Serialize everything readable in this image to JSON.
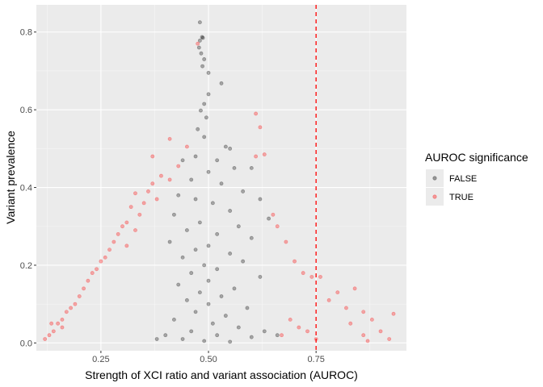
{
  "chart_data": {
    "type": "scatter",
    "title": "",
    "xlabel": "Strength of XCI ratio and variant association (AUROC)",
    "ylabel": "Variant prevalence",
    "xlim": [
      0.1,
      0.96
    ],
    "ylim": [
      -0.02,
      0.87
    ],
    "x_ticks": [
      0.25,
      0.5,
      0.75
    ],
    "x_tick_labels": [
      "0.25",
      "0.50",
      "0.75"
    ],
    "y_ticks": [
      0,
      0.2,
      0.4,
      0.6,
      0.8
    ],
    "y_tick_labels": [
      "0.0",
      "0.2",
      "0.4",
      "0.6",
      "0.8"
    ],
    "grid": true,
    "panel_background": "#ebebeb",
    "vline": {
      "x": 0.75,
      "color": "#ff0000",
      "style": "dashed"
    },
    "legend": {
      "title": "AUROC significance",
      "position": "right",
      "entries": [
        {
          "label": "FALSE",
          "color": "#000000"
        },
        {
          "label": "TRUE",
          "color": "#ff0000"
        }
      ]
    },
    "series": [
      {
        "name": "FALSE",
        "color": "#000000",
        "alpha": 0.3,
        "points": [
          [
            0.48,
            0.825
          ],
          [
            0.485,
            0.787
          ],
          [
            0.487,
            0.785
          ],
          [
            0.48,
            0.778
          ],
          [
            0.478,
            0.76
          ],
          [
            0.483,
            0.745
          ],
          [
            0.49,
            0.73
          ],
          [
            0.486,
            0.712
          ],
          [
            0.5,
            0.695
          ],
          [
            0.53,
            0.668
          ],
          [
            0.5,
            0.64
          ],
          [
            0.49,
            0.615
          ],
          [
            0.482,
            0.598
          ],
          [
            0.495,
            0.58
          ],
          [
            0.475,
            0.55
          ],
          [
            0.49,
            0.53
          ],
          [
            0.54,
            0.505
          ],
          [
            0.55,
            0.5
          ],
          [
            0.47,
            0.48
          ],
          [
            0.52,
            0.47
          ],
          [
            0.44,
            0.47
          ],
          [
            0.56,
            0.45
          ],
          [
            0.5,
            0.44
          ],
          [
            0.6,
            0.45
          ],
          [
            0.46,
            0.42
          ],
          [
            0.53,
            0.41
          ],
          [
            0.58,
            0.39
          ],
          [
            0.43,
            0.38
          ],
          [
            0.62,
            0.37
          ],
          [
            0.47,
            0.37
          ],
          [
            0.51,
            0.36
          ],
          [
            0.55,
            0.34
          ],
          [
            0.42,
            0.33
          ],
          [
            0.64,
            0.32
          ],
          [
            0.48,
            0.31
          ],
          [
            0.57,
            0.3
          ],
          [
            0.45,
            0.29
          ],
          [
            0.52,
            0.28
          ],
          [
            0.6,
            0.27
          ],
          [
            0.41,
            0.26
          ],
          [
            0.5,
            0.25
          ],
          [
            0.47,
            0.24
          ],
          [
            0.55,
            0.23
          ],
          [
            0.44,
            0.22
          ],
          [
            0.58,
            0.21
          ],
          [
            0.49,
            0.2
          ],
          [
            0.52,
            0.19
          ],
          [
            0.46,
            0.18
          ],
          [
            0.62,
            0.17
          ],
          [
            0.5,
            0.16
          ],
          [
            0.43,
            0.15
          ],
          [
            0.56,
            0.14
          ],
          [
            0.48,
            0.13
          ],
          [
            0.53,
            0.12
          ],
          [
            0.45,
            0.11
          ],
          [
            0.5,
            0.1
          ],
          [
            0.59,
            0.09
          ],
          [
            0.47,
            0.08
          ],
          [
            0.54,
            0.07
          ],
          [
            0.42,
            0.06
          ],
          [
            0.51,
            0.05
          ],
          [
            0.57,
            0.04
          ],
          [
            0.46,
            0.03
          ],
          [
            0.52,
            0.02
          ],
          [
            0.6,
            0.015
          ],
          [
            0.44,
            0.01
          ],
          [
            0.49,
            0.005
          ],
          [
            0.55,
            0.003
          ],
          [
            0.4,
            0.02
          ],
          [
            0.63,
            0.03
          ],
          [
            0.38,
            0.01
          ],
          [
            0.66,
            0.02
          ]
        ]
      },
      {
        "name": "TRUE",
        "color": "#ff0000",
        "alpha": 0.3,
        "points": [
          [
            0.475,
            0.77
          ],
          [
            0.61,
            0.59
          ],
          [
            0.62,
            0.555
          ],
          [
            0.41,
            0.525
          ],
          [
            0.45,
            0.505
          ],
          [
            0.37,
            0.48
          ],
          [
            0.63,
            0.485
          ],
          [
            0.61,
            0.48
          ],
          [
            0.43,
            0.455
          ],
          [
            0.39,
            0.43
          ],
          [
            0.41,
            0.42
          ],
          [
            0.37,
            0.41
          ],
          [
            0.36,
            0.39
          ],
          [
            0.33,
            0.385
          ],
          [
            0.38,
            0.37
          ],
          [
            0.35,
            0.36
          ],
          [
            0.32,
            0.35
          ],
          [
            0.34,
            0.33
          ],
          [
            0.31,
            0.31
          ],
          [
            0.3,
            0.3
          ],
          [
            0.33,
            0.29
          ],
          [
            0.29,
            0.28
          ],
          [
            0.28,
            0.26
          ],
          [
            0.31,
            0.25
          ],
          [
            0.27,
            0.24
          ],
          [
            0.26,
            0.22
          ],
          [
            0.25,
            0.21
          ],
          [
            0.24,
            0.19
          ],
          [
            0.23,
            0.18
          ],
          [
            0.22,
            0.16
          ],
          [
            0.21,
            0.14
          ],
          [
            0.2,
            0.12
          ],
          [
            0.19,
            0.1
          ],
          [
            0.18,
            0.09
          ],
          [
            0.17,
            0.08
          ],
          [
            0.16,
            0.06
          ],
          [
            0.15,
            0.05
          ],
          [
            0.14,
            0.03
          ],
          [
            0.13,
            0.02
          ],
          [
            0.12,
            0.01
          ],
          [
            0.135,
            0.05
          ],
          [
            0.16,
            0.04
          ],
          [
            0.65,
            0.33
          ],
          [
            0.66,
            0.3
          ],
          [
            0.68,
            0.26
          ],
          [
            0.7,
            0.21
          ],
          [
            0.72,
            0.18
          ],
          [
            0.74,
            0.17
          ],
          [
            0.76,
            0.17
          ],
          [
            0.8,
            0.13
          ],
          [
            0.84,
            0.14
          ],
          [
            0.78,
            0.11
          ],
          [
            0.82,
            0.09
          ],
          [
            0.86,
            0.08
          ],
          [
            0.88,
            0.06
          ],
          [
            0.83,
            0.05
          ],
          [
            0.9,
            0.03
          ],
          [
            0.86,
            0.02
          ],
          [
            0.87,
            0.005
          ],
          [
            0.93,
            0.075
          ],
          [
            0.92,
            0.01
          ],
          [
            0.69,
            0.06
          ],
          [
            0.71,
            0.04
          ],
          [
            0.73,
            0.03
          ],
          [
            0.67,
            0.02
          ],
          [
            0.75,
            0.01
          ]
        ]
      }
    ]
  }
}
